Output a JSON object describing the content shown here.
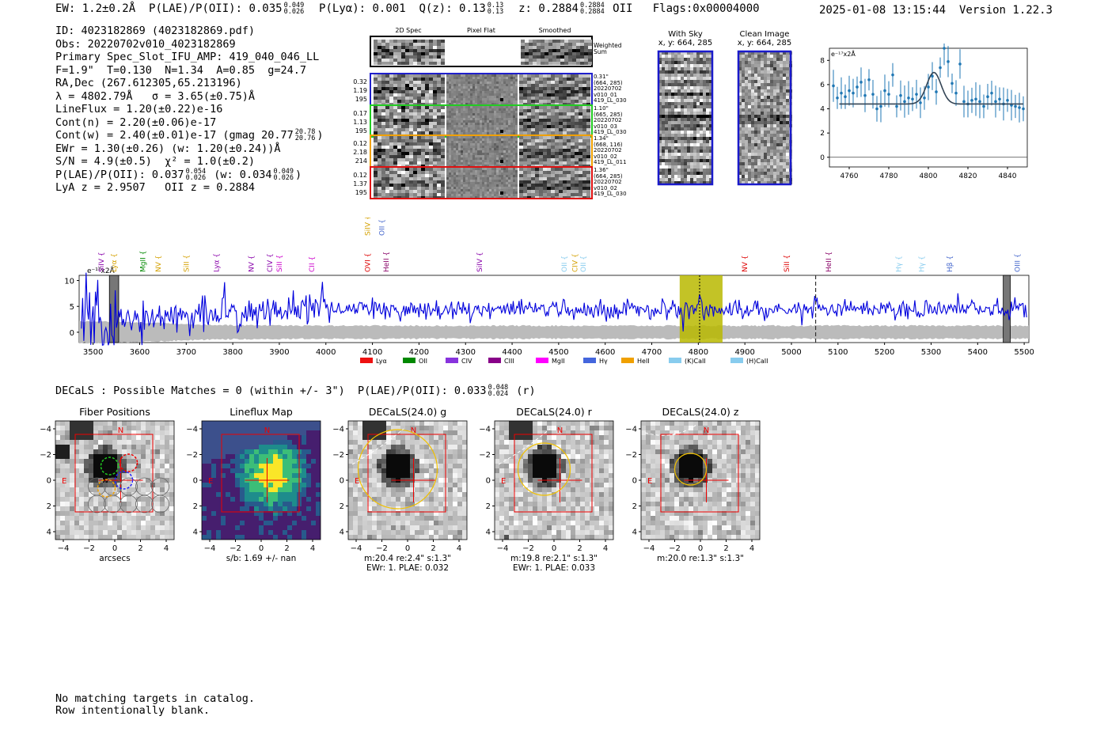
{
  "header": {
    "ew": "EW: 1.2±0.2Å",
    "plae_label": "P(LAE)/P(OII): 0.035",
    "plae_hi": "0.049",
    "plae_lo": "0.026",
    "plya": "P(Lyα): 0.001",
    "qz_label": "Q(z): 0.13",
    "qz_hi": "0.13",
    "qz_lo": "0.13",
    "z_label": "z: 0.2884",
    "z_hi": "0.2884",
    "z_lo": "0.2884",
    "z_line": "OII",
    "flags": "Flags:0x00004000",
    "datetime": "2025-01-08 13:15:44",
    "version": "Version 1.22.3"
  },
  "info": {
    "id": "ID: 4023182869 (4023182869.pdf)",
    "obs": "Obs: 20220702v010_4023182869",
    "primary": "Primary Spec_Slot_IFU_AMP: 419_040_046_LL",
    "fparams": "F=1.9\"  T=0.130  N=1.34  A=0.85  g=24.7",
    "radec": "RA,Dec (267.612305,65.213196)",
    "lambda": "λ = 4802.79Å   σ = 3.65(±0.75)Å",
    "lineflux": "LineFlux = 1.20(±0.22)e-16",
    "contn": "Cont(n) = 2.20(±0.06)e-17",
    "contw": "Cont(w) = 2.40(±0.01)e-17 (gmag 20.77",
    "contw_hi": "20.78",
    "contw_lo": "20.76",
    "ewr": "EWr = 1.30(±0.26) (w: 1.20(±0.24))Å",
    "sn": "S/N = 4.9(±0.5)  χ² = 1.0(±0.2)",
    "plae": "P(LAE)/P(OII): 0.037",
    "plae_hi": "0.054",
    "plae_lo": "0.026",
    "plae_w": "(w: 0.034",
    "plae_w_hi": "0.049",
    "plae_w_lo": "0.026",
    "lyaz": "LyA z = 2.9507   OII z = 0.2884"
  },
  "stamps": {
    "col_labels": [
      "2D Spec",
      "Pixel Flat",
      "Smoothed"
    ],
    "weighted_label": "Weighted\nSum",
    "rows": [
      {
        "left": [
          "0.32",
          "1.19",
          "195"
        ],
        "right": [
          "0.31\"",
          "(664, 285)",
          "20220702",
          "v010_01",
          "419_LL_030"
        ],
        "color": "#1f1fcc"
      },
      {
        "left": [
          "0.17",
          "1.13",
          "195"
        ],
        "right": [
          "1.10\"",
          "(665, 285)",
          "20220702",
          "v010_03",
          "419_LL_030"
        ],
        "color": "#22cc22"
      },
      {
        "left": [
          "0.12",
          "2.18",
          "214"
        ],
        "right": [
          "1.34\"",
          "(668, 116)",
          "20220702",
          "v010_02",
          "419_LL_011"
        ],
        "color": "#f0a000"
      },
      {
        "left": [
          "0.12",
          "1.37",
          "195"
        ],
        "right": [
          "1.36\"",
          "(664, 285)",
          "20220702",
          "v010_02",
          "419_LL_030"
        ],
        "color": "#e01010"
      }
    ]
  },
  "sky": {
    "with_sky_title": "With Sky",
    "with_sky_coords": "x, y: 664, 285",
    "clean_title": "Clean Image",
    "clean_coords": "x, y: 664, 285"
  },
  "chart_data": [
    {
      "id": "zoom",
      "type": "line",
      "title": "",
      "unit_label": "e⁻¹⁷x2Å",
      "xlim": [
        4750,
        4850
      ],
      "ylim": [
        -0.8,
        9.0
      ],
      "xticks": [
        4760,
        4780,
        4800,
        4820,
        4840
      ],
      "yticks": [
        0,
        2,
        4,
        6,
        8
      ],
      "fit": {
        "center": 4802.8,
        "sigma": 3.65,
        "amp": 2.6,
        "base": 4.4
      },
      "points_x": [
        4752,
        4754,
        4756,
        4758,
        4760,
        4762,
        4764,
        4766,
        4768,
        4770,
        4772,
        4774,
        4776,
        4778,
        4780,
        4782,
        4784,
        4786,
        4788,
        4790,
        4792,
        4794,
        4796,
        4798,
        4800,
        4802,
        4804,
        4806,
        4808,
        4810,
        4812,
        4814,
        4816,
        4818,
        4820,
        4822,
        4824,
        4826,
        4828,
        4830,
        4832,
        4834,
        4836,
        4838,
        4840,
        4842,
        4844,
        4846,
        4848
      ],
      "points_y": [
        5.9,
        4.9,
        5.3,
        5.0,
        5.5,
        5.3,
        5.8,
        6.2,
        5.1,
        6.4,
        5.2,
        4.0,
        4.2,
        5.5,
        5.2,
        6.8,
        4.2,
        5.1,
        4.6,
        4.9,
        4.8,
        5.2,
        4.5,
        4.9,
        5.8,
        6.7,
        5.4,
        7.4,
        9.0,
        7.9,
        6.1,
        5.3,
        7.7,
        4.6,
        4.4,
        4.7,
        4.8,
        4.6,
        4.2,
        5.0,
        5.3,
        4.6,
        4.8,
        4.4,
        4.7,
        4.3,
        4.2,
        4.1,
        4.0
      ]
    },
    {
      "id": "full",
      "type": "line",
      "unit_label": "e⁻¹⁷x2Å",
      "xlim": [
        3470,
        5510
      ],
      "ylim": [
        -2,
        11
      ],
      "xticks": [
        3500,
        3600,
        3700,
        3800,
        3900,
        4000,
        4100,
        4200,
        4300,
        4400,
        4500,
        4600,
        4700,
        4800,
        4900,
        5000,
        5100,
        5200,
        5300,
        5400,
        5500
      ],
      "yticks": [
        0,
        5,
        10
      ],
      "highlight": [
        4760,
        4852
      ],
      "marker_main": 4802.8,
      "marker_alt": 5052,
      "masks": [
        [
          3535,
          3555
        ],
        [
          5455,
          5470
        ]
      ],
      "series_seed": 7,
      "line_labels_top": [
        {
          "name": "SiIV",
          "x": 3518,
          "color": "#8800aa"
        },
        {
          "name": "Lyα",
          "x": 3545,
          "color": "#d4a000"
        },
        {
          "name": "MgII",
          "x": 3607,
          "color": "#008800"
        },
        {
          "name": "NV",
          "x": 3640,
          "color": "#d4a000"
        },
        {
          "name": "SiII",
          "x": 3700,
          "color": "#d4a000"
        },
        {
          "name": "Lyα",
          "x": 3765,
          "color": "#8800aa"
        },
        {
          "name": "NV",
          "x": 3840,
          "color": "#8800aa"
        },
        {
          "name": "CIV",
          "x": 3880,
          "color": "#8800aa"
        },
        {
          "name": "SiII",
          "x": 3900,
          "color": "#cc00cc"
        },
        {
          "name": "CII",
          "x": 3970,
          "color": "#cc00cc"
        },
        {
          "name": "OVI",
          "x": 4090,
          "color": "#dd0000"
        },
        {
          "name": "HeII",
          "x": 4130,
          "color": "#880066"
        },
        {
          "name": "SiIV",
          "x": 4330,
          "color": "#8800aa"
        },
        {
          "name": "OII",
          "x": 4512,
          "color": "#88ccee"
        },
        {
          "name": "CIV",
          "x": 4535,
          "color": "#d4a000"
        },
        {
          "name": "OII",
          "x": 4553,
          "color": "#88ccee"
        },
        {
          "name": "NV",
          "x": 4900,
          "color": "#dd0000"
        },
        {
          "name": "SiII",
          "x": 4990,
          "color": "#dd0000"
        },
        {
          "name": "HeII",
          "x": 5080,
          "color": "#880066"
        },
        {
          "name": "Hγ",
          "x": 5230,
          "color": "#88ccee"
        },
        {
          "name": "Hγ",
          "x": 5280,
          "color": "#88ccee"
        },
        {
          "name": "Hβ",
          "x": 5340,
          "color": "#4466cc"
        },
        {
          "name": "OIII",
          "x": 5485,
          "color": "#4466cc"
        }
      ],
      "line_labels_high": [
        {
          "name": "SiIV",
          "x": 4090,
          "color": "#d4a000"
        },
        {
          "name": "OII",
          "x": 4120,
          "color": "#4466cc"
        }
      ],
      "legend": [
        {
          "name": "Lyα",
          "color": "#ee1111"
        },
        {
          "name": "OII",
          "color": "#008800"
        },
        {
          "name": "CIV",
          "color": "#8833dd"
        },
        {
          "name": "CIII",
          "color": "#880088"
        },
        {
          "name": "MgII",
          "color": "#ff00ff"
        },
        {
          "name": "Hγ",
          "color": "#4466dd"
        },
        {
          "name": "HeII",
          "color": "#f0a000"
        },
        {
          "name": "(K)CaII",
          "color": "#88ccee"
        },
        {
          "name": "(H)CaII",
          "color": "#88ccee"
        }
      ]
    }
  ],
  "decals": {
    "summary": "DECaLS : Possible Matches = 0 (within +/- 3\")  P(LAE)/P(OII): 0.033",
    "sum_hi": "0.048",
    "sum_lo": "0.024",
    "sum_band": "(r)",
    "panels": [
      {
        "title": "Fiber Positions",
        "caption1": "arcsecs",
        "caption2": "",
        "kind": "fiber"
      },
      {
        "title": "Lineflux Map",
        "caption1": "s/b: 1.69 +/- nan",
        "caption2": "",
        "kind": "lineflux"
      },
      {
        "title": "DECaLS(24.0) g",
        "caption1": "m:20.4  re:2.4\"  s:1.3\"",
        "caption2": "EWr: 1. PLAE: 0.032",
        "kind": "g"
      },
      {
        "title": "DECaLS(24.0) r",
        "caption1": "m:19.8  re:2.1\"  s:1.3\"",
        "caption2": "EWr: 1. PLAE: 0.033",
        "kind": "r"
      },
      {
        "title": "DECaLS(24.0) z",
        "caption1": "m:20.0  re:1.3\"  s:1.3\"",
        "caption2": "",
        "kind": "z"
      }
    ],
    "axis_ticks": [
      "−4",
      "−2",
      "0",
      "2",
      "4"
    ],
    "north": "N",
    "east": "E"
  },
  "footer": {
    "line1": "No matching targets in catalog.",
    "line2": "Row intentionally blank."
  }
}
